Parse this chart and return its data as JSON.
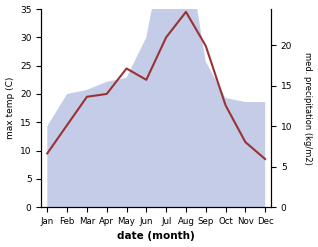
{
  "months": [
    "Jan",
    "Feb",
    "Mar",
    "Apr",
    "May",
    "Jun",
    "Jul",
    "Aug",
    "Sep",
    "Oct",
    "Nov",
    "Dec"
  ],
  "max_temp": [
    9.5,
    14.5,
    19.5,
    20.0,
    24.5,
    22.5,
    30.0,
    34.5,
    28.5,
    18.0,
    11.5,
    8.5
  ],
  "precipitation": [
    10.0,
    14.0,
    14.5,
    15.5,
    16.0,
    21.0,
    33.5,
    33.0,
    18.0,
    13.5,
    13.0,
    13.0
  ],
  "temp_color": "#993333",
  "precip_fill_color": "#c5cce8",
  "temp_ylim": [
    0,
    35
  ],
  "precip_ylim": [
    0,
    24.5
  ],
  "temp_yticks": [
    0,
    5,
    10,
    15,
    20,
    25,
    30,
    35
  ],
  "precip_yticks": [
    0,
    5,
    10,
    15,
    20
  ],
  "xlabel": "date (month)",
  "ylabel_left": "max temp (C)",
  "ylabel_right": "med. precipitation (kg/m2)",
  "background_color": "#ffffff"
}
